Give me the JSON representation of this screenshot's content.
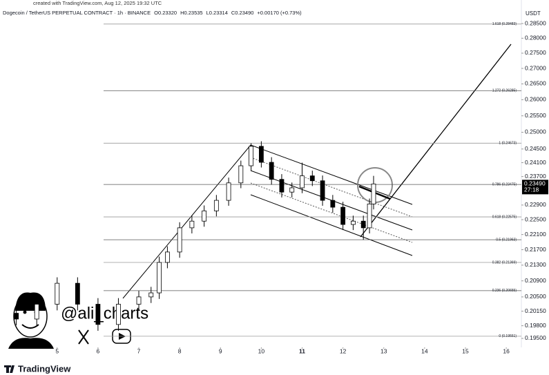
{
  "chart_data": {
    "type": "candlestick",
    "watermark": "created with TradingView.com, Aug 12, 2025 19:32 UTC",
    "title": "Dogecoin / TetherUS PERPETUAL CONTRACT · 1h · BINANCE",
    "ohlc_text": [
      "O0.23320",
      "H0.23535",
      "L0.23314",
      "C0.23490",
      "+0.00170 (+0.73%)"
    ],
    "currency": "USDT",
    "x": [
      4.0,
      4.5,
      5.0,
      5.5,
      6.0,
      6.5,
      7.0,
      7.3,
      7.5,
      7.7,
      8.0,
      8.3,
      8.6,
      8.9,
      9.2,
      9.5,
      9.75,
      10.0,
      10.25,
      10.5,
      10.75,
      11.0,
      11.25,
      11.5,
      11.75,
      12.0,
      12.25,
      12.5,
      12.65,
      12.75
    ],
    "open": [
      0.201,
      0.1996,
      0.2032,
      0.2084,
      0.2032,
      0.1983,
      0.2032,
      0.205,
      0.206,
      0.2137,
      0.2164,
      0.2228,
      0.2246,
      0.2274,
      0.2303,
      0.2352,
      0.2401,
      0.2458,
      0.2411,
      0.2362,
      0.2326,
      0.2338,
      0.2372,
      0.2358,
      0.2303,
      0.2284,
      0.2237,
      0.2246,
      0.2228,
      0.2293
    ],
    "high": [
      0.2025,
      0.2047,
      0.2099,
      0.2099,
      0.2047,
      0.2047,
      0.2065,
      0.2075,
      0.2152,
      0.2179,
      0.2243,
      0.2261,
      0.2289,
      0.2318,
      0.2367,
      0.2416,
      0.2467,
      0.2473,
      0.2426,
      0.2377,
      0.2353,
      0.241,
      0.2387,
      0.2373,
      0.2318,
      0.2299,
      0.2261,
      0.2261,
      0.2308,
      0.2372
    ],
    "low": [
      0.1981,
      0.1981,
      0.2017,
      0.2017,
      0.1968,
      0.1968,
      0.2017,
      0.2035,
      0.2045,
      0.2122,
      0.2149,
      0.2213,
      0.2231,
      0.2259,
      0.2288,
      0.2337,
      0.2386,
      0.2396,
      0.2347,
      0.2311,
      0.2311,
      0.2323,
      0.2343,
      0.2288,
      0.2269,
      0.2222,
      0.2222,
      0.2196,
      0.2213,
      0.2278
    ],
    "close": [
      0.1996,
      0.2032,
      0.2084,
      0.2032,
      0.1983,
      0.2032,
      0.205,
      0.206,
      0.2137,
      0.2164,
      0.2228,
      0.2246,
      0.2274,
      0.2303,
      0.2352,
      0.2401,
      0.2458,
      0.2411,
      0.2362,
      0.2326,
      0.2338,
      0.2372,
      0.2358,
      0.2303,
      0.2284,
      0.2237,
      0.2246,
      0.2228,
      0.2293,
      0.2349
    ],
    "up_color": "#ffffff",
    "down_color": "#000000",
    "xlim": [
      3.6,
      16.37
    ],
    "xticks": [
      5,
      6,
      7,
      8,
      9,
      10,
      11,
      12,
      13,
      14,
      15,
      16
    ],
    "highlight_xtick": 11,
    "ylim": [
      0.1929,
      0.2874
    ],
    "log_scale": true,
    "yticks": [
      {
        "value": 0.285,
        "label": "0.28500"
      },
      {
        "value": 0.28,
        "label": "0.28000"
      },
      {
        "value": 0.275,
        "label": "0.27500"
      },
      {
        "value": 0.27,
        "label": "0.27000"
      },
      {
        "value": 0.265,
        "label": "0.26500"
      },
      {
        "value": 0.26,
        "label": "0.26000"
      },
      {
        "value": 0.255,
        "label": "0.25500"
      },
      {
        "value": 0.25,
        "label": "0.25000"
      },
      {
        "value": 0.245,
        "label": "0.24500"
      },
      {
        "value": 0.241,
        "label": "0.24100"
      },
      {
        "value": 0.237,
        "label": "0.23700"
      },
      {
        "value": 0.229,
        "label": "0.22900"
      },
      {
        "value": 0.225,
        "label": "0.22500"
      },
      {
        "value": 0.221,
        "label": "0.22100"
      },
      {
        "value": 0.217,
        "label": "0.21700"
      },
      {
        "value": 0.213,
        "label": "0.21300"
      },
      {
        "value": 0.209,
        "label": "0.20900"
      },
      {
        "value": 0.205,
        "label": "0.20500"
      },
      {
        "value": 0.2015,
        "label": "0.20150"
      },
      {
        "value": 0.198,
        "label": "0.19800"
      },
      {
        "value": 0.195,
        "label": "0.19500"
      }
    ],
    "fib_levels": [
      {
        "value": 0.28483,
        "label": "1.618 (0.28483)"
      },
      {
        "value": 0.26285,
        "label": "1.272 (0.26285)"
      },
      {
        "value": 0.24673,
        "label": "1 (0.24673)"
      },
      {
        "value": 0.23475,
        "label": "0.786 (0.23475)"
      },
      {
        "value": 0.22575,
        "label": "0.618 (0.22575)"
      },
      {
        "value": 0.21963,
        "label": "0.5 (0.21963)"
      },
      {
        "value": 0.21369,
        "label": "0.382 (0.21369)"
      },
      {
        "value": 0.20655,
        "label": "0.236 (0.20655)"
      },
      {
        "value": 0.19551,
        "label": "0 (0.19551)"
      }
    ],
    "last_price": {
      "value": 0.2349,
      "label": "0.23490"
    },
    "countdown": "27:18",
    "author": "@ali_charts",
    "brand": "TradingView"
  }
}
